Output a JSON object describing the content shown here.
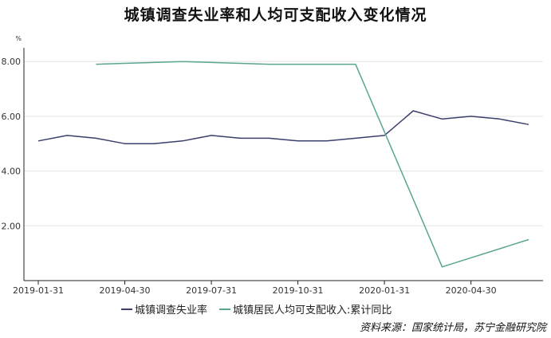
{
  "chart_data": {
    "type": "line",
    "title": "城镇调查失业率和人均可支配收入变化情况",
    "ylabel": "%",
    "ylim": [
      0,
      8.5
    ],
    "yticks": [
      "2.00",
      "4.00",
      "6.00",
      "8.00"
    ],
    "xticks": [
      "2019-01-31",
      "2019-04-30",
      "2019-07-31",
      "2019-10-31",
      "2020-01-31",
      "2020-04-30"
    ],
    "x": [
      "2019-01-31",
      "2019-02-28",
      "2019-03-31",
      "2019-04-30",
      "2019-05-31",
      "2019-06-30",
      "2019-07-31",
      "2019-08-31",
      "2019-09-30",
      "2019-10-31",
      "2019-11-30",
      "2019-12-31",
      "2020-01-31",
      "2020-02-29",
      "2020-03-31",
      "2020-04-30",
      "2020-05-31",
      "2020-06-30"
    ],
    "series": [
      {
        "name": "城镇调查失业率",
        "color": "#3b3f6b",
        "values": [
          5.1,
          5.3,
          5.2,
          5.0,
          5.0,
          5.1,
          5.3,
          5.2,
          5.2,
          5.1,
          5.1,
          5.2,
          5.3,
          6.2,
          5.9,
          6.0,
          5.9,
          5.7
        ]
      },
      {
        "name": "城镇居民人均可支配收入:累计同比",
        "color": "#5aa693",
        "values": [
          null,
          null,
          7.9,
          null,
          null,
          8.0,
          null,
          null,
          7.9,
          null,
          null,
          7.9,
          null,
          null,
          0.5,
          null,
          null,
          1.5
        ]
      }
    ],
    "grid": true,
    "legend": "bottom-center"
  },
  "source": "资料来源：国家统计局，苏宁金融研究院"
}
